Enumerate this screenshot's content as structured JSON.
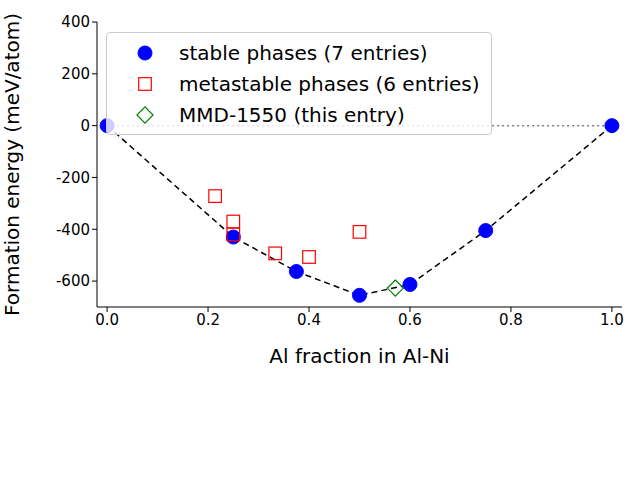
{
  "chart_data": {
    "type": "scatter",
    "xlabel": "Al fraction in Al-Ni",
    "ylabel": "Formation energy (meV/atom)",
    "xlim": [
      -0.02,
      1.02
    ],
    "ylim": [
      -700,
      400
    ],
    "xticks": [
      {
        "value": 0,
        "label": "0.0"
      },
      {
        "value": 0.2,
        "label": "0.2"
      },
      {
        "value": 0.4,
        "label": "0.4"
      },
      {
        "value": 0.6,
        "label": "0.6"
      },
      {
        "value": 0.8,
        "label": "0.8"
      },
      {
        "value": 1,
        "label": "1.0"
      }
    ],
    "yticks": [
      -600,
      -400,
      -200,
      0,
      200,
      400
    ],
    "legend": "upper left",
    "series": [
      {
        "name": "stable phases (7 entries)",
        "color": "#0000ff",
        "marker": "circle",
        "line_style": "dashed",
        "x": [
          0,
          0.25,
          0.375,
          0.5,
          0.6,
          0.75,
          1
        ],
        "values": [
          0,
          -430,
          -563,
          -655,
          -613,
          -405,
          0
        ]
      },
      {
        "name": "metastable phases (6 entries)",
        "color": "#ff0000",
        "marker": "square",
        "x": [
          0.214,
          0.25,
          0.25,
          0.333,
          0.4,
          0.5
        ],
        "values": [
          -272,
          -370,
          -420,
          -493,
          -507,
          -410
        ]
      },
      {
        "name": "MMD-1550 (this entry)",
        "color": "#008000",
        "marker": "diamond",
        "x": [
          0.571
        ],
        "values": [
          -627
        ]
      }
    ]
  }
}
